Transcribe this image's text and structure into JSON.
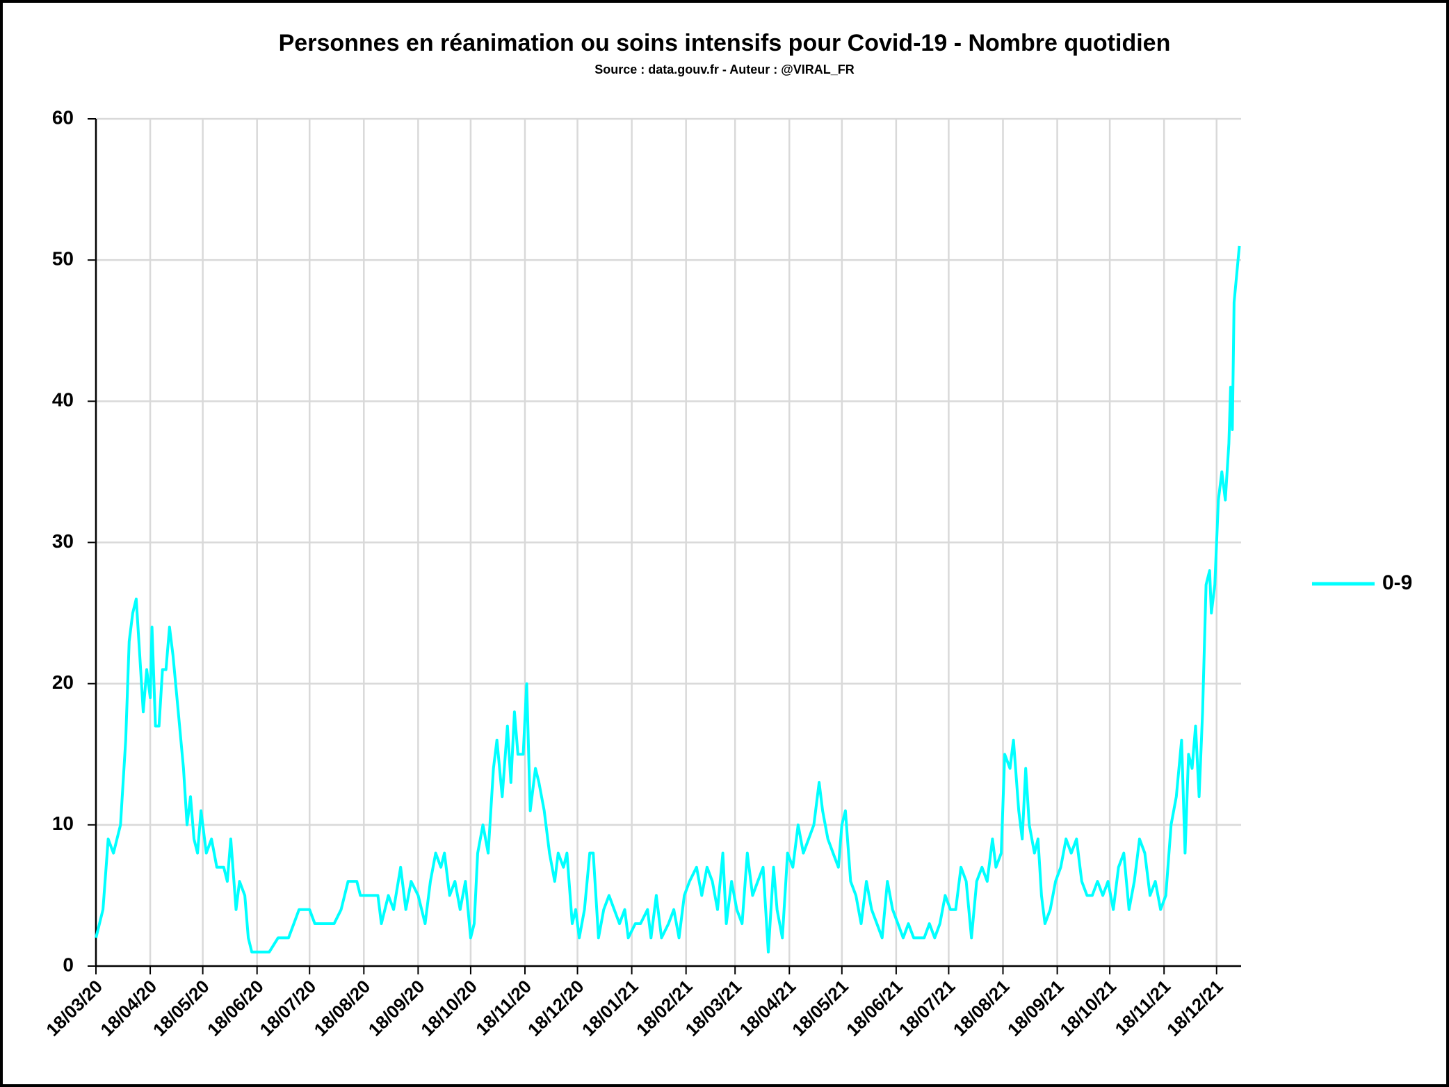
{
  "chart_data": {
    "type": "line",
    "title": "Personnes en réanimation ou soins intensifs pour Covid-19 - Nombre quotidien",
    "subtitle": "Source : data.gouv.fr - Auteur : @VIRAL_FR",
    "x": [
      "18/03/20",
      "22/03/20",
      "25/03/20",
      "28/03/20",
      "01/04/20",
      "04/04/20",
      "06/04/20",
      "08/04/20",
      "10/04/20",
      "12/04/20",
      "14/04/20",
      "16/04/20",
      "18/04/20",
      "19/04/20",
      "21/04/20",
      "23/04/20",
      "25/04/20",
      "27/04/20",
      "29/04/20",
      "01/05/20",
      "04/05/20",
      "07/05/20",
      "09/05/20",
      "11/05/20",
      "13/05/20",
      "15/05/20",
      "17/05/20",
      "20/05/20",
      "23/05/20",
      "26/05/20",
      "30/05/20",
      "01/06/20",
      "03/06/20",
      "06/06/20",
      "08/06/20",
      "11/06/20",
      "13/06/20",
      "15/06/20",
      "25/06/20",
      "30/06/20",
      "06/07/20",
      "09/07/20",
      "12/07/20",
      "18/07/20",
      "21/07/20",
      "01/08/20",
      "05/08/20",
      "09/08/20",
      "14/08/20",
      "16/08/20",
      "26/08/20",
      "28/08/20",
      "01/09/20",
      "04/09/20",
      "08/09/20",
      "11/09/20",
      "14/09/20",
      "18/09/20",
      "22/09/20",
      "25/09/20",
      "28/09/20",
      "01/10/20",
      "03/10/20",
      "06/10/20",
      "09/10/20",
      "12/10/20",
      "15/10/20",
      "18/10/20",
      "20/10/20",
      "22/10/20",
      "25/10/20",
      "28/10/20",
      "31/10/20",
      "02/11/20",
      "05/11/20",
      "08/11/20",
      "10/11/20",
      "12/11/20",
      "14/11/20",
      "17/11/20",
      "19/11/20",
      "21/11/20",
      "24/11/20",
      "26/11/20",
      "29/11/20",
      "02/12/20",
      "05/12/20",
      "07/12/20",
      "10/12/20",
      "12/12/20",
      "15/12/20",
      "17/12/20",
      "19/12/20",
      "22/12/20",
      "25/12/20",
      "27/12/20",
      "30/12/20",
      "02/01/21",
      "05/01/21",
      "08/01/21",
      "11/01/21",
      "14/01/21",
      "16/01/21",
      "20/01/21",
      "23/01/21",
      "27/01/21",
      "29/01/21",
      "01/02/21",
      "04/02/21",
      "08/02/21",
      "11/02/21",
      "14/02/21",
      "17/02/21",
      "20/02/21",
      "24/02/21",
      "27/02/21",
      "02/03/21",
      "05/03/21",
      "08/03/21",
      "11/03/21",
      "13/03/21",
      "16/03/21",
      "19/03/21",
      "22/03/21",
      "25/03/21",
      "28/03/21",
      "31/03/21",
      "03/04/21",
      "06/04/21",
      "09/04/21",
      "11/04/21",
      "14/04/21",
      "17/04/21",
      "20/04/21",
      "23/04/21",
      "26/04/21",
      "29/04/21",
      "02/05/21",
      "05/05/21",
      "07/05/21",
      "10/05/21",
      "13/05/21",
      "16/05/21",
      "18/05/21",
      "20/05/21",
      "23/05/21",
      "26/05/21",
      "29/05/21",
      "01/06/21",
      "04/06/21",
      "07/06/21",
      "10/06/21",
      "13/06/21",
      "16/06/21",
      "19/06/21",
      "22/06/21",
      "25/06/21",
      "28/06/21",
      "04/07/21",
      "07/07/21",
      "10/07/21",
      "13/07/21",
      "16/07/21",
      "19/07/21",
      "22/07/21",
      "25/07/21",
      "28/07/21",
      "31/07/21",
      "03/08/21",
      "06/08/21",
      "09/08/21",
      "12/08/21",
      "14/08/21",
      "17/08/21",
      "19/08/21",
      "22/08/21",
      "24/08/21",
      "27/08/21",
      "29/08/21",
      "31/08/21",
      "02/09/21",
      "05/09/21",
      "07/09/21",
      "09/09/21",
      "11/09/21",
      "14/09/21",
      "17/09/21",
      "20/09/21",
      "23/09/21",
      "26/09/21",
      "29/09/21",
      "02/10/21",
      "05/10/21",
      "08/10/21",
      "11/10/21",
      "14/10/21",
      "17/10/21",
      "20/10/21",
      "23/10/21",
      "26/10/21",
      "29/10/21",
      "01/11/21",
      "04/11/21",
      "07/11/21",
      "10/11/21",
      "13/11/21",
      "16/11/21",
      "19/11/21",
      "22/11/21",
      "25/11/21",
      "28/11/21",
      "30/11/21",
      "02/12/21",
      "04/12/21",
      "06/12/21",
      "08/12/21",
      "10/12/21",
      "12/12/21",
      "14/12/21",
      "15/12/21",
      "17/12/21",
      "19/12/21",
      "21/12/21",
      "23/12/21",
      "25/12/21",
      "26/12/21",
      "27/12/21",
      "28/12/21",
      "31/12/21"
    ],
    "series": [
      {
        "name": "0-9",
        "color": "#00ffff",
        "values": [
          2,
          4,
          9,
          8,
          10,
          16,
          23,
          25,
          26,
          22,
          18,
          21,
          19,
          24,
          17,
          17,
          21,
          21,
          24,
          22,
          18,
          14,
          10,
          12,
          9,
          8,
          11,
          8,
          9,
          7,
          7,
          6,
          9,
          4,
          6,
          5,
          2,
          1,
          1,
          2,
          2,
          3,
          4,
          4,
          3,
          3,
          4,
          6,
          6,
          5,
          5,
          3,
          5,
          4,
          7,
          4,
          6,
          5,
          3,
          6,
          8,
          7,
          8,
          5,
          6,
          4,
          6,
          2,
          3,
          8,
          10,
          8,
          14,
          16,
          12,
          17,
          13,
          18,
          15,
          15,
          20,
          11,
          14,
          13,
          11,
          8,
          6,
          8,
          7,
          8,
          3,
          4,
          2,
          4,
          8,
          8,
          2,
          4,
          5,
          4,
          3,
          4,
          2,
          3,
          3,
          4,
          2,
          5,
          2,
          3,
          4,
          2,
          5,
          6,
          7,
          5,
          7,
          6,
          4,
          8,
          3,
          6,
          4,
          3,
          8,
          5,
          6,
          7,
          1,
          7,
          4,
          2,
          8,
          7,
          10,
          8,
          9,
          10,
          13,
          11,
          9,
          8,
          7,
          10,
          11,
          6,
          5,
          3,
          6,
          4,
          3,
          2,
          6,
          4,
          3,
          2,
          3,
          2,
          2,
          3,
          2,
          3,
          5,
          4,
          4,
          7,
          6,
          2,
          6,
          7,
          6,
          9,
          7,
          8,
          15,
          14,
          16,
          11,
          9,
          14,
          10,
          8,
          9,
          5,
          3,
          4,
          6,
          7,
          9,
          8,
          9,
          6,
          5,
          5,
          6,
          5,
          6,
          4,
          7,
          8,
          4,
          6,
          9,
          8,
          5,
          6,
          4,
          5,
          10,
          12,
          16,
          8,
          15,
          14,
          17,
          12,
          18,
          27,
          28,
          25,
          27,
          33,
          35,
          33,
          37,
          41,
          38,
          47,
          51
        ]
      }
    ],
    "xlim": [
      "18/03/20",
      "01/01/22"
    ],
    "xticks": [
      "18/03/20",
      "18/04/20",
      "18/05/20",
      "18/06/20",
      "18/07/20",
      "18/08/20",
      "18/09/20",
      "18/10/20",
      "18/11/20",
      "18/12/20",
      "18/01/21",
      "18/02/21",
      "18/03/21",
      "18/04/21",
      "18/05/21",
      "18/06/21",
      "18/07/21",
      "18/08/21",
      "18/09/21",
      "18/10/21",
      "18/11/21",
      "18/12/21"
    ],
    "ylim": [
      0,
      60
    ],
    "yticks": [
      0,
      10,
      20,
      30,
      40,
      50,
      60
    ],
    "grid": true,
    "legend": "right"
  }
}
